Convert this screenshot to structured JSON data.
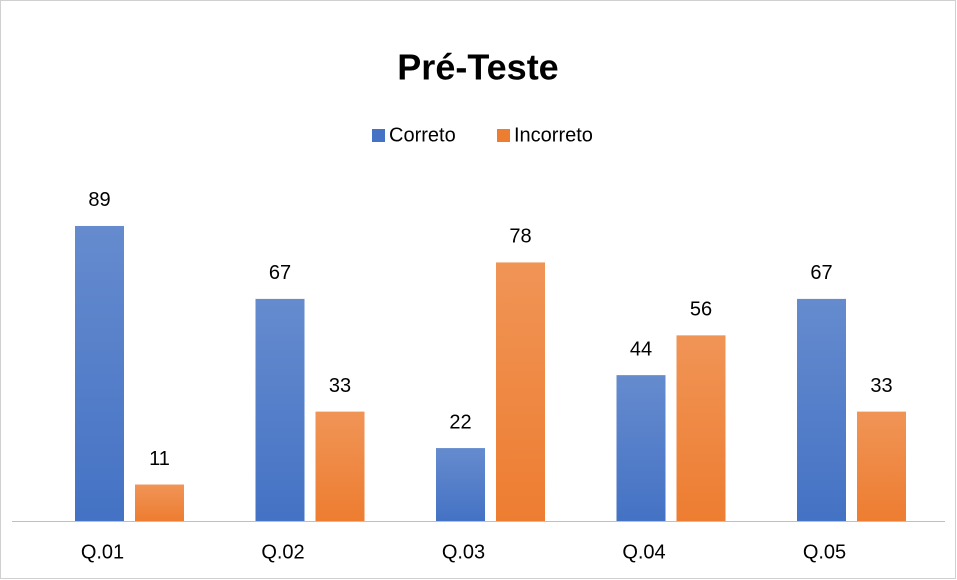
{
  "chart_data": {
    "type": "bar",
    "title": "Pré-Teste",
    "categories": [
      "Q.01",
      "Q.02",
      "Q.03",
      "Q.04",
      "Q.05"
    ],
    "series": [
      {
        "name": "Correto",
        "color": "#4472c4",
        "values": [
          89,
          67,
          22,
          44,
          67
        ]
      },
      {
        "name": "Incorreto",
        "color": "#ed7d31",
        "values": [
          11,
          33,
          78,
          56,
          33
        ]
      }
    ],
    "legend": "top"
  }
}
